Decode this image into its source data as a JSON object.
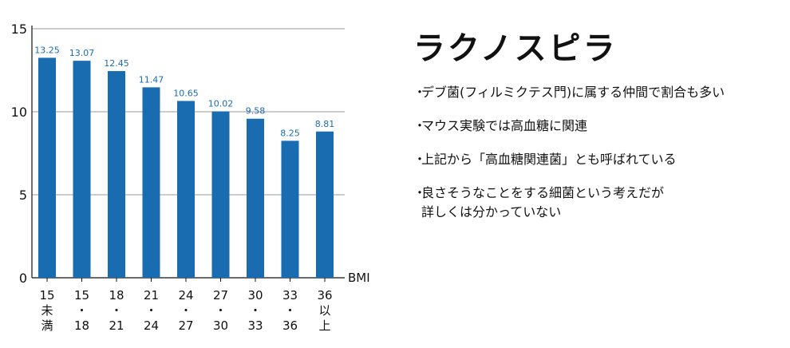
{
  "chart_data": {
    "type": "bar",
    "categories": [
      [
        "15",
        "未",
        "満"
      ],
      [
        "15",
        "・",
        "18"
      ],
      [
        "18",
        "・",
        "21"
      ],
      [
        "21",
        "・",
        "24"
      ],
      [
        "24",
        "・",
        "27"
      ],
      [
        "27",
        "・",
        "30"
      ],
      [
        "30",
        "・",
        "33"
      ],
      [
        "33",
        "・",
        "36"
      ],
      [
        "36",
        "以",
        "上"
      ]
    ],
    "values": [
      13.25,
      13.07,
      12.45,
      11.47,
      10.65,
      10.02,
      9.58,
      8.25,
      8.81
    ],
    "value_labels": [
      "13.25",
      "13.07",
      "12.45",
      "11.47",
      "10.65",
      "10.02",
      "9.58",
      "8.25",
      "8.81"
    ],
    "ylim": [
      0,
      15
    ],
    "yticks": [
      0,
      5,
      10,
      15
    ],
    "xlabel": "BMI",
    "grid": true,
    "bar_color": "#1a6cb0",
    "label_color": "#1a6cb0"
  },
  "panel": {
    "title": "ラクノスピラ",
    "bullet": "・",
    "notes": [
      "デブ菌(フィルミクテス門)に属する仲間で割合も多い",
      "マウス実験では高血糖に関連",
      "上記から「高血糖関連菌」とも呼ばれている",
      "良さそうなことをする細菌という考えだが\n詳しくは分かっていない"
    ]
  }
}
